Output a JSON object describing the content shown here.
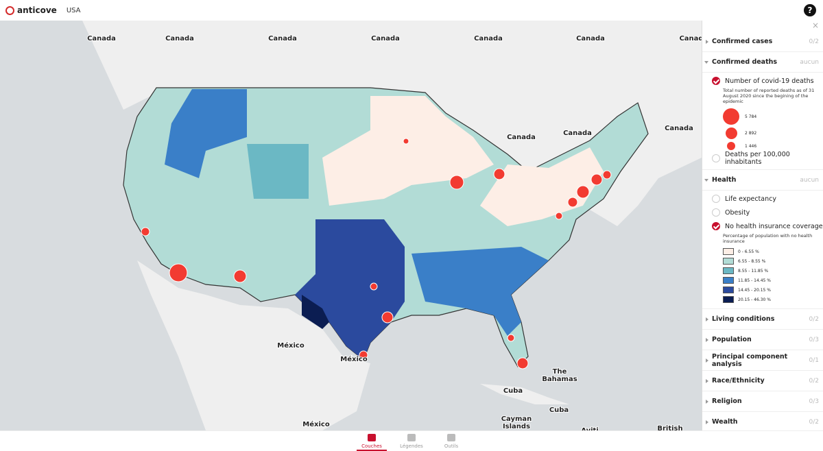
{
  "header": {
    "logo": "anticove",
    "title": "USA",
    "help": "?"
  },
  "map": {
    "labels": [
      "Canada",
      "Canada",
      "Canada",
      "Canada",
      "Canada",
      "Canada",
      "Canad",
      "Canada",
      "Canada",
      "Canada",
      "México",
      "México",
      "México",
      "The Bahamas",
      "Cuba",
      "Cuba",
      "Cayman Islands",
      "Aviti",
      "British"
    ]
  },
  "sidebar": {
    "close": "×",
    "groups": [
      {
        "title": "Confirmed cases",
        "status": "0/2"
      },
      {
        "title": "Confirmed deaths",
        "status": "aucun",
        "items": [
          {
            "label": "Number of covid-19 deaths",
            "checked": true,
            "legend": {
              "title": "Total number of reported deaths as of 31 August 2020 since the begining of the epidemic",
              "sizes": [
                "5 784",
                "2 892",
                "1 446"
              ]
            }
          },
          {
            "label": "Deaths per 100,000 inhabitants",
            "checked": false
          }
        ]
      },
      {
        "title": "Health",
        "status": "aucun",
        "items": [
          {
            "label": "Life expectancy",
            "checked": false
          },
          {
            "label": "Obesity",
            "checked": false
          },
          {
            "label": "No health insurance coverage",
            "checked": true,
            "legend": {
              "title": "Percentage of population with no health insurance",
              "classes": [
                "0 - 6.55 %",
                "6.55 - 8.55 %",
                "8.55 - 11.85 %",
                "11.85 - 14.45 %",
                "14.45 - 20.15 %",
                "20.15 - 46.30 %"
              ],
              "colors": [
                "#fdeee6",
                "#b2dcd6",
                "#6bb8c4",
                "#3a7fc8",
                "#2b4a9e",
                "#0b1d52"
              ]
            }
          }
        ]
      },
      {
        "title": "Living conditions",
        "status": "0/2"
      },
      {
        "title": "Population",
        "status": "0/3"
      },
      {
        "title": "Principal component analysis",
        "status": "0/1"
      },
      {
        "title": "Race/Ethnicity",
        "status": "0/2"
      },
      {
        "title": "Religion",
        "status": "0/3"
      },
      {
        "title": "Wealth",
        "status": "0/2"
      }
    ]
  },
  "tabs": [
    "Couches",
    "Légendes",
    "Outils"
  ]
}
